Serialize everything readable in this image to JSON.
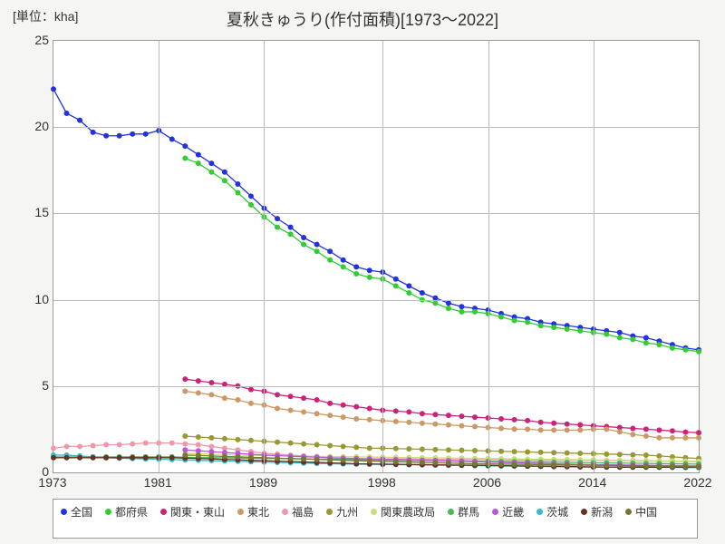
{
  "chart": {
    "type": "line",
    "title": "夏秋きゅうり(作付面積)[1973～2022]",
    "unit_label": "[単位：kha]",
    "background_color": "#f5f5f3",
    "plot_bg": "#ffffff",
    "grid_color": "#bbbbbb",
    "border_color": "#999999",
    "text_color": "#333333",
    "title_fontsize": 18,
    "label_fontsize": 14,
    "legend_fontsize": 12,
    "marker_size": 3,
    "line_width": 1.3,
    "xlim": [
      1973,
      2022
    ],
    "ylim": [
      0,
      25
    ],
    "xticks": [
      1973,
      1981,
      1989,
      1998,
      2006,
      2014,
      2022
    ],
    "yticks": [
      0,
      5,
      10,
      15,
      20,
      25
    ],
    "series": [
      {
        "name": "全国",
        "color": "#2233dd",
        "x": [
          1973,
          1974,
          1975,
          1976,
          1977,
          1978,
          1979,
          1980,
          1981,
          1982,
          1983,
          1984,
          1985,
          1986,
          1987,
          1988,
          1989,
          1990,
          1991,
          1992,
          1993,
          1994,
          1995,
          1996,
          1997,
          1998,
          1999,
          2000,
          2001,
          2002,
          2003,
          2004,
          2005,
          2006,
          2007,
          2008,
          2009,
          2010,
          2011,
          2012,
          2013,
          2014,
          2015,
          2016,
          2017,
          2018,
          2019,
          2020,
          2021,
          2022
        ],
        "y": [
          22.2,
          20.8,
          20.4,
          19.7,
          19.5,
          19.5,
          19.6,
          19.6,
          19.8,
          19.3,
          18.9,
          18.4,
          17.9,
          17.4,
          16.7,
          16.0,
          15.3,
          14.7,
          14.2,
          13.6,
          13.2,
          12.8,
          12.3,
          11.9,
          11.7,
          11.6,
          11.2,
          10.8,
          10.4,
          10.1,
          9.8,
          9.6,
          9.5,
          9.4,
          9.2,
          9.0,
          8.9,
          8.7,
          8.6,
          8.5,
          8.4,
          8.3,
          8.2,
          8.1,
          7.9,
          7.8,
          7.6,
          7.4,
          7.2,
          7.1
        ]
      },
      {
        "name": "都府県",
        "color": "#33cc33",
        "x": [
          1983,
          1984,
          1985,
          1986,
          1987,
          1988,
          1989,
          1990,
          1991,
          1992,
          1993,
          1994,
          1995,
          1996,
          1997,
          1998,
          1999,
          2000,
          2001,
          2002,
          2003,
          2004,
          2005,
          2006,
          2007,
          2008,
          2009,
          2010,
          2011,
          2012,
          2013,
          2014,
          2015,
          2016,
          2017,
          2018,
          2019,
          2020,
          2021,
          2022
        ],
        "y": [
          18.2,
          17.9,
          17.4,
          16.9,
          16.2,
          15.5,
          14.8,
          14.2,
          13.8,
          13.2,
          12.8,
          12.3,
          11.9,
          11.5,
          11.3,
          11.2,
          10.8,
          10.4,
          10.0,
          9.8,
          9.5,
          9.3,
          9.3,
          9.2,
          9.0,
          8.8,
          8.7,
          8.5,
          8.4,
          8.3,
          8.2,
          8.1,
          8.0,
          7.8,
          7.7,
          7.5,
          7.4,
          7.2,
          7.1,
          7.0
        ]
      },
      {
        "name": "関東・東山",
        "color": "#cc2277",
        "x": [
          1983,
          1984,
          1985,
          1986,
          1987,
          1988,
          1989,
          1990,
          1991,
          1992,
          1993,
          1994,
          1995,
          1996,
          1997,
          1998,
          1999,
          2000,
          2001,
          2002,
          2003,
          2004,
          2005,
          2006,
          2007,
          2008,
          2009,
          2010,
          2011,
          2012,
          2013,
          2014,
          2015,
          2016,
          2017,
          2018,
          2019,
          2020,
          2021,
          2022
        ],
        "y": [
          5.4,
          5.3,
          5.2,
          5.1,
          5.0,
          4.8,
          4.7,
          4.5,
          4.4,
          4.3,
          4.2,
          4.0,
          3.9,
          3.8,
          3.7,
          3.6,
          3.55,
          3.5,
          3.4,
          3.35,
          3.3,
          3.25,
          3.2,
          3.15,
          3.1,
          3.05,
          3.0,
          2.9,
          2.85,
          2.8,
          2.75,
          2.7,
          2.65,
          2.6,
          2.55,
          2.5,
          2.45,
          2.4,
          2.33,
          2.3
        ]
      },
      {
        "name": "東北",
        "color": "#cc9966",
        "x": [
          1983,
          1984,
          1985,
          1986,
          1987,
          1988,
          1989,
          1990,
          1991,
          1992,
          1993,
          1994,
          1995,
          1996,
          1997,
          1998,
          1999,
          2000,
          2001,
          2002,
          2003,
          2004,
          2005,
          2006,
          2007,
          2008,
          2009,
          2010,
          2011,
          2012,
          2013,
          2014,
          2015,
          2016,
          2017,
          2018,
          2019,
          2020,
          2021,
          2022
        ],
        "y": [
          4.7,
          4.6,
          4.5,
          4.3,
          4.2,
          4.0,
          3.9,
          3.7,
          3.6,
          3.5,
          3.4,
          3.3,
          3.2,
          3.1,
          3.05,
          3.0,
          2.95,
          2.9,
          2.85,
          2.8,
          2.75,
          2.7,
          2.65,
          2.6,
          2.55,
          2.5,
          2.5,
          2.45,
          2.45,
          2.45,
          2.45,
          2.5,
          2.5,
          2.35,
          2.2,
          2.1,
          2.0,
          2.0,
          2.0,
          2.0
        ]
      },
      {
        "name": "福島",
        "color": "#ee99aa",
        "x": [
          1973,
          1974,
          1975,
          1976,
          1977,
          1978,
          1979,
          1980,
          1981,
          1982,
          1983,
          1984,
          1985,
          1986,
          1987,
          1988,
          1989,
          1990,
          1991,
          1992,
          1993,
          1994,
          1995,
          1996,
          1997,
          1998,
          1999,
          2000,
          2001,
          2002,
          2003,
          2004,
          2005,
          2006,
          2007,
          2008,
          2009,
          2010,
          2011,
          2012,
          2013,
          2014,
          2015,
          2016,
          2017,
          2018,
          2019,
          2020,
          2021,
          2022
        ],
        "y": [
          1.4,
          1.5,
          1.5,
          1.55,
          1.6,
          1.6,
          1.65,
          1.7,
          1.7,
          1.7,
          1.65,
          1.6,
          1.5,
          1.4,
          1.3,
          1.2,
          1.1,
          1.05,
          1.0,
          0.95,
          0.9,
          0.85,
          0.8,
          0.8,
          0.78,
          0.78,
          0.78,
          0.78,
          0.77,
          0.76,
          0.75,
          0.75,
          0.75,
          0.74,
          0.73,
          0.72,
          0.71,
          0.7,
          0.7,
          0.7,
          0.7,
          0.7,
          0.69,
          0.68,
          0.67,
          0.66,
          0.65,
          0.64,
          0.63,
          0.62
        ]
      },
      {
        "name": "九州",
        "color": "#999933",
        "x": [
          1983,
          1984,
          1985,
          1986,
          1987,
          1988,
          1989,
          1990,
          1991,
          1992,
          1993,
          1994,
          1995,
          1996,
          1997,
          1998,
          1999,
          2000,
          2001,
          2002,
          2003,
          2004,
          2005,
          2006,
          2007,
          2008,
          2009,
          2010,
          2011,
          2012,
          2013,
          2014,
          2015,
          2016,
          2017,
          2018,
          2019,
          2020,
          2021,
          2022
        ],
        "y": [
          2.1,
          2.05,
          2.0,
          1.95,
          1.9,
          1.85,
          1.8,
          1.75,
          1.7,
          1.65,
          1.6,
          1.55,
          1.5,
          1.45,
          1.4,
          1.4,
          1.38,
          1.36,
          1.34,
          1.32,
          1.3,
          1.28,
          1.26,
          1.24,
          1.22,
          1.2,
          1.18,
          1.16,
          1.14,
          1.12,
          1.1,
          1.08,
          1.06,
          1.04,
          1.02,
          1.0,
          0.95,
          0.9,
          0.85,
          0.8
        ]
      },
      {
        "name": "関東農政局",
        "color": "#ccdd77",
        "x": [
          1983,
          1984,
          1985,
          1986,
          1987,
          1988,
          1989,
          1990,
          1991,
          1992,
          1993,
          1994,
          1995,
          1996,
          1997,
          1998,
          1999,
          2000,
          2001,
          2002,
          2003,
          2004,
          2005,
          2006,
          2007,
          2008,
          2009,
          2010,
          2011,
          2012,
          2013,
          2014,
          2015,
          2016,
          2017,
          2018,
          2019,
          2020,
          2021,
          2022
        ],
        "y": [
          1.1,
          1.08,
          1.05,
          1.03,
          1.0,
          0.98,
          0.97,
          0.96,
          0.95,
          0.94,
          0.93,
          0.92,
          0.91,
          0.9,
          0.89,
          0.88,
          0.87,
          0.86,
          0.85,
          0.84,
          0.83,
          0.82,
          0.81,
          0.8,
          0.79,
          0.78,
          0.77,
          0.76,
          0.75,
          0.74,
          0.73,
          0.72,
          0.71,
          0.7,
          0.69,
          0.68,
          0.67,
          0.66,
          0.65,
          0.64
        ]
      },
      {
        "name": "群馬",
        "color": "#44bb55",
        "x": [
          1973,
          1974,
          1975,
          1976,
          1977,
          1978,
          1979,
          1980,
          1981,
          1982,
          1983,
          1984,
          1985,
          1986,
          1987,
          1988,
          1989,
          1990,
          1991,
          1992,
          1993,
          1994,
          1995,
          1996,
          1997,
          1998,
          1999,
          2000,
          2001,
          2002,
          2003,
          2004,
          2005,
          2006,
          2007,
          2008,
          2009,
          2010,
          2011,
          2012,
          2013,
          2014,
          2015,
          2016,
          2017,
          2018,
          2019,
          2020,
          2021,
          2022
        ],
        "y": [
          0.9,
          0.9,
          0.9,
          0.9,
          0.9,
          0.9,
          0.9,
          0.9,
          0.9,
          0.9,
          0.88,
          0.86,
          0.85,
          0.84,
          0.83,
          0.82,
          0.81,
          0.8,
          0.79,
          0.78,
          0.77,
          0.76,
          0.75,
          0.74,
          0.73,
          0.72,
          0.71,
          0.7,
          0.69,
          0.68,
          0.67,
          0.66,
          0.65,
          0.64,
          0.63,
          0.62,
          0.61,
          0.6,
          0.59,
          0.58,
          0.57,
          0.56,
          0.55,
          0.54,
          0.53,
          0.52,
          0.51,
          0.5,
          0.49,
          0.48
        ]
      },
      {
        "name": "近畿",
        "color": "#bb55dd",
        "x": [
          1983,
          1984,
          1985,
          1986,
          1987,
          1988,
          1989,
          1990,
          1991,
          1992,
          1993,
          1994,
          1995,
          1996,
          1997,
          1998,
          1999,
          2000,
          2001,
          2002,
          2003,
          2004,
          2005,
          2006,
          2007,
          2008,
          2009,
          2010,
          2011,
          2012,
          2013,
          2014,
          2015,
          2016,
          2017,
          2018,
          2019,
          2020,
          2021,
          2022
        ],
        "y": [
          1.3,
          1.25,
          1.2,
          1.15,
          1.1,
          1.05,
          1.0,
          0.97,
          0.94,
          0.91,
          0.88,
          0.85,
          0.82,
          0.8,
          0.78,
          0.76,
          0.74,
          0.72,
          0.7,
          0.68,
          0.66,
          0.64,
          0.62,
          0.6,
          0.58,
          0.56,
          0.54,
          0.52,
          0.5,
          0.48,
          0.46,
          0.45,
          0.44,
          0.43,
          0.42,
          0.41,
          0.4,
          0.39,
          0.38,
          0.37
        ]
      },
      {
        "name": "茨城",
        "color": "#33bbcc",
        "x": [
          1973,
          1974,
          1975,
          1976,
          1977,
          1978,
          1979,
          1980,
          1981,
          1982,
          1983,
          1984,
          1985,
          1986,
          1987,
          1988,
          1989,
          1990,
          1991,
          1992,
          1993,
          1994,
          1995,
          1996,
          1997,
          1998,
          1999,
          2000,
          2001,
          2002,
          2003,
          2004,
          2005,
          2006,
          2007,
          2008,
          2009,
          2010,
          2011,
          2012,
          2013,
          2014,
          2015,
          2016,
          2017,
          2018,
          2019,
          2020,
          2021,
          2022
        ],
        "y": [
          1.0,
          1.0,
          0.95,
          0.9,
          0.85,
          0.82,
          0.8,
          0.78,
          0.76,
          0.74,
          0.72,
          0.7,
          0.68,
          0.66,
          0.64,
          0.62,
          0.6,
          0.58,
          0.56,
          0.54,
          0.52,
          0.5,
          0.49,
          0.48,
          0.47,
          0.46,
          0.45,
          0.44,
          0.43,
          0.42,
          0.41,
          0.4,
          0.39,
          0.38,
          0.37,
          0.36,
          0.35,
          0.34,
          0.33,
          0.32,
          0.31,
          0.3,
          0.3,
          0.3,
          0.3,
          0.3,
          0.29,
          0.29,
          0.28,
          0.28
        ]
      },
      {
        "name": "新潟",
        "color": "#663322",
        "x": [
          1973,
          1974,
          1975,
          1976,
          1977,
          1978,
          1979,
          1980,
          1981,
          1982,
          1983,
          1984,
          1985,
          1986,
          1987,
          1988,
          1989,
          1990,
          1991,
          1992,
          1993,
          1994,
          1995,
          1996,
          1997,
          1998,
          1999,
          2000,
          2001,
          2002,
          2003,
          2004,
          2005,
          2006,
          2007,
          2008,
          2009,
          2010,
          2011,
          2012,
          2013,
          2014,
          2015,
          2016,
          2017,
          2018,
          2019,
          2020,
          2021,
          2022
        ],
        "y": [
          0.85,
          0.85,
          0.85,
          0.85,
          0.85,
          0.85,
          0.85,
          0.85,
          0.85,
          0.85,
          0.83,
          0.8,
          0.78,
          0.75,
          0.73,
          0.7,
          0.68,
          0.65,
          0.63,
          0.6,
          0.58,
          0.55,
          0.53,
          0.5,
          0.49,
          0.48,
          0.47,
          0.46,
          0.45,
          0.44,
          0.43,
          0.42,
          0.41,
          0.4,
          0.39,
          0.38,
          0.37,
          0.36,
          0.35,
          0.34,
          0.33,
          0.32,
          0.31,
          0.3,
          0.3,
          0.3,
          0.3,
          0.3,
          0.3,
          0.3
        ]
      },
      {
        "name": "中国",
        "color": "#777733",
        "x": [
          1983,
          1984,
          1985,
          1986,
          1987,
          1988,
          1989,
          1990,
          1991,
          1992,
          1993,
          1994,
          1995,
          1996,
          1997,
          1998,
          1999,
          2000,
          2001,
          2002,
          2003,
          2004,
          2005,
          2006,
          2007,
          2008,
          2009,
          2010,
          2011,
          2012,
          2013,
          2014,
          2015,
          2016,
          2017,
          2018,
          2019,
          2020,
          2021,
          2022
        ],
        "y": [
          1.0,
          0.98,
          0.95,
          0.92,
          0.9,
          0.87,
          0.85,
          0.82,
          0.8,
          0.78,
          0.75,
          0.73,
          0.7,
          0.68,
          0.66,
          0.64,
          0.62,
          0.6,
          0.58,
          0.56,
          0.54,
          0.52,
          0.5,
          0.49,
          0.48,
          0.47,
          0.46,
          0.45,
          0.44,
          0.43,
          0.42,
          0.41,
          0.4,
          0.39,
          0.38,
          0.37,
          0.36,
          0.35,
          0.34,
          0.33
        ]
      }
    ]
  }
}
